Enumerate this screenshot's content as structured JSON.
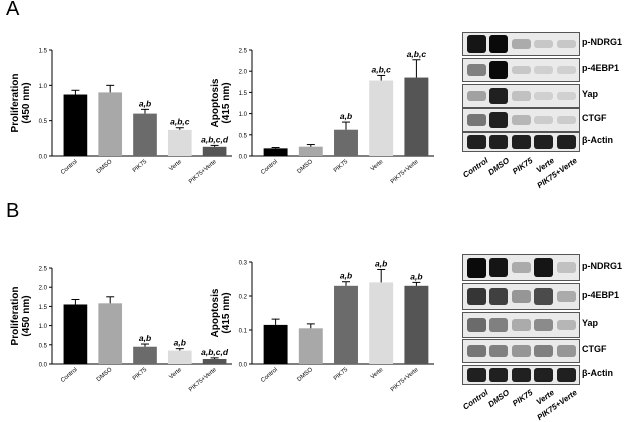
{
  "panels": [
    {
      "letter": "A"
    },
    {
      "letter": "B"
    }
  ],
  "lanes": [
    "Control",
    "DMSO",
    "PIK75",
    "Verte",
    "PIK75+Verte"
  ],
  "chart_data": [
    {
      "type": "bar",
      "panel": "A",
      "ylabel": "Proliferation\n(450 nm)",
      "ylim": [
        0.0,
        1.5
      ],
      "yticks": [
        "0.0",
        "0.5",
        "1.0",
        "1.5"
      ],
      "categories": [
        "Control",
        "DMSO",
        "PIK75",
        "Verte",
        "PIK75+Verte"
      ],
      "values": [
        0.87,
        0.9,
        0.6,
        0.37,
        0.13
      ],
      "errors": [
        0.06,
        0.1,
        0.06,
        0.03,
        0.02
      ],
      "annotations": [
        "",
        "",
        "a,b",
        "a,b,c",
        "a,b,c,d"
      ],
      "colors": [
        "#000000",
        "#a8a8a8",
        "#6b6b6b",
        "#dcdcdc",
        "#555555"
      ]
    },
    {
      "type": "bar",
      "panel": "A",
      "ylabel": "Apoptosis\n(415 nm)",
      "ylim": [
        0.0,
        2.5
      ],
      "yticks": [
        "0.0",
        "0.5",
        "1.0",
        "1.5",
        "2.0",
        "2.5"
      ],
      "categories": [
        "Control",
        "DMSO",
        "PIK75",
        "Verte",
        "PIK75+Verte"
      ],
      "values": [
        0.18,
        0.22,
        0.62,
        1.78,
        1.85
      ],
      "errors": [
        0.02,
        0.05,
        0.18,
        0.12,
        0.42
      ],
      "annotations": [
        "",
        "",
        "a,b",
        "a,b,c",
        "a,b,c"
      ],
      "colors": [
        "#000000",
        "#a8a8a8",
        "#6b6b6b",
        "#dcdcdc",
        "#555555"
      ]
    },
    {
      "type": "bar",
      "panel": "B",
      "ylabel": "Proliferation\n(450 nm)",
      "ylim": [
        0.0,
        2.5
      ],
      "yticks": [
        "0.0",
        "0.5",
        "1.0",
        "1.5",
        "2.0",
        "2.5"
      ],
      "categories": [
        "Control",
        "DMSO",
        "PIK75",
        "Verte",
        "PIK75+Verte"
      ],
      "values": [
        1.55,
        1.58,
        0.45,
        0.35,
        0.13
      ],
      "errors": [
        0.13,
        0.17,
        0.07,
        0.05,
        0.03
      ],
      "annotations": [
        "",
        "",
        "a,b",
        "a,b",
        "a,b,c,d"
      ],
      "colors": [
        "#000000",
        "#a8a8a8",
        "#6b6b6b",
        "#dcdcdc",
        "#555555"
      ]
    },
    {
      "type": "bar",
      "panel": "B",
      "ylabel": "Apoptosis\n(415 nm)",
      "ylim": [
        0.0,
        0.3
      ],
      "yticks": [
        "0.0",
        "0.1",
        "0.2",
        "0.3"
      ],
      "categories": [
        "Control",
        "DMSO",
        "PIK75",
        "Verte",
        "PIK75+Verte"
      ],
      "values": [
        0.115,
        0.105,
        0.23,
        0.24,
        0.23
      ],
      "errors": [
        0.017,
        0.013,
        0.012,
        0.038,
        0.01
      ],
      "annotations": [
        "",
        "",
        "a,b",
        "a,b",
        "a,b"
      ],
      "colors": [
        "#000000",
        "#a8a8a8",
        "#6b6b6b",
        "#dcdcdc",
        "#555555"
      ]
    }
  ],
  "blots": [
    {
      "panel": "A",
      "lane_labels": [
        "Control",
        "DMSO",
        "PIK75",
        "Verte",
        "PIK75+Verte"
      ],
      "rows": [
        {
          "label": "p-NDRG1",
          "intensities": [
            0.95,
            1.0,
            0.25,
            0.12,
            0.12
          ]
        },
        {
          "label": "p-4EBP1",
          "intensities": [
            0.45,
            1.0,
            0.12,
            0.08,
            0.08
          ]
        },
        {
          "label": "Yap",
          "intensities": [
            0.3,
            0.9,
            0.15,
            0.08,
            0.08
          ]
        },
        {
          "label": "CTGF",
          "intensities": [
            0.5,
            0.9,
            0.2,
            0.1,
            0.1
          ]
        },
        {
          "label": "β-Actin",
          "intensities": [
            0.9,
            0.9,
            0.9,
            0.9,
            0.9
          ]
        }
      ]
    },
    {
      "panel": "B",
      "lane_labels": [
        "Control",
        "DMSO",
        "PIK75",
        "Verte",
        "PIK75+Verte"
      ],
      "rows": [
        {
          "label": "p-NDRG1",
          "intensities": [
            1.0,
            0.95,
            0.25,
            0.95,
            0.15
          ]
        },
        {
          "label": "p-4EBP1",
          "intensities": [
            0.8,
            0.75,
            0.35,
            0.7,
            0.25
          ]
        },
        {
          "label": "Yap",
          "intensities": [
            0.55,
            0.45,
            0.25,
            0.4,
            0.2
          ]
        },
        {
          "label": "CTGF",
          "intensities": [
            0.5,
            0.45,
            0.35,
            0.45,
            0.35
          ]
        },
        {
          "label": "β-Actin",
          "intensities": [
            0.9,
            0.9,
            0.9,
            0.9,
            0.9
          ]
        }
      ]
    }
  ]
}
